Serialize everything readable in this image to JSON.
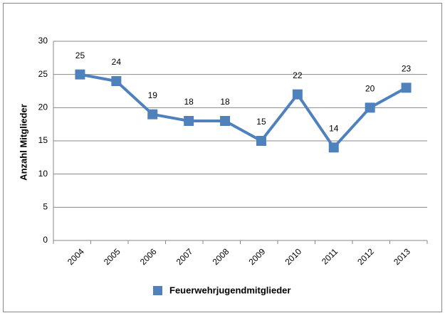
{
  "chart_data": {
    "type": "line",
    "y_axis_label": "Anzahl Mitglieder",
    "categories": [
      "2004",
      "2005",
      "2006",
      "2007",
      "2008",
      "2009",
      "2010",
      "2011",
      "2012",
      "2013"
    ],
    "series": [
      {
        "name": "Feuerwehrjugendmitglieder",
        "color": "#4f81bd",
        "values": [
          25,
          24,
          19,
          18,
          18,
          15,
          22,
          14,
          20,
          23
        ]
      }
    ],
    "ylim": [
      0,
      30
    ],
    "yticks": [
      0,
      5,
      10,
      15,
      20,
      25,
      30
    ],
    "grid": true,
    "legend": "bottom"
  }
}
